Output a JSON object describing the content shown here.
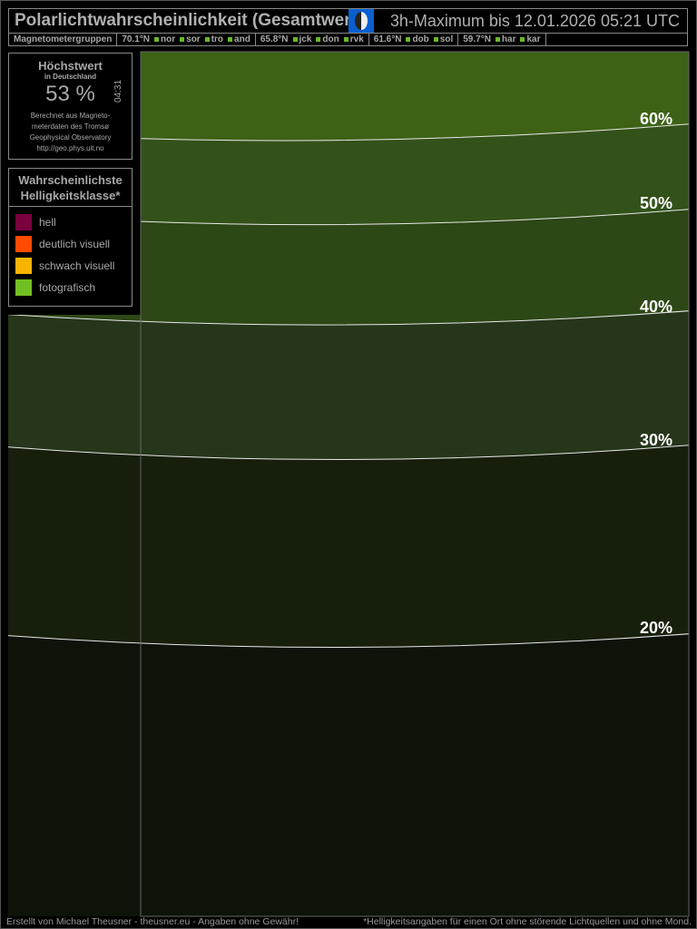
{
  "header": {
    "title": "Polarlichtwahrscheinlichkeit (Gesamtwert)",
    "subtitle": "3h-Maximum bis 12.01.2026 05:21 UTC",
    "moon_icon": "moon-phase-icon"
  },
  "magnetometer": {
    "label": "Magnetometergruppen",
    "groups": [
      {
        "lat": "70.1°N",
        "stations": [
          "nor",
          "sor",
          "tro",
          "and"
        ]
      },
      {
        "lat": "65.8°N",
        "stations": [
          "jck",
          "don",
          "rvk"
        ]
      },
      {
        "lat": "61.6°N",
        "stations": [
          "dob",
          "sol"
        ]
      },
      {
        "lat": "59.7°N",
        "stations": [
          "har",
          "kar"
        ]
      }
    ]
  },
  "max_box": {
    "title": "Höchstwert",
    "subtitle": "in Deutschland",
    "value": "53 %",
    "time": "04:31",
    "source": [
      "Berechnet aus Magneto-",
      "meterdaten des Tromsø",
      "Geophysical Observatory",
      "http://geo.phys.uit.no"
    ]
  },
  "legend": {
    "title1": "Wahrscheinlichste",
    "title2": "Helligkeitsklasse*",
    "items": [
      {
        "label": "hell",
        "color": "#7a0040"
      },
      {
        "label": "deutlich visuell",
        "color": "#ff4a00"
      },
      {
        "label": "schwach visuell",
        "color": "#f8b400"
      },
      {
        "label": "fotografisch",
        "color": "#72bf22"
      }
    ]
  },
  "contours": [
    "60%",
    "50%",
    "40%",
    "30%",
    "20%"
  ],
  "footer": {
    "left": "Erstellt von Michael Theusner - theusner.eu - Angaben ohne Gewähr!",
    "right": "*Helligkeitsangaben für einen Ort ohne störende Lichtquellen und ohne Mond."
  }
}
